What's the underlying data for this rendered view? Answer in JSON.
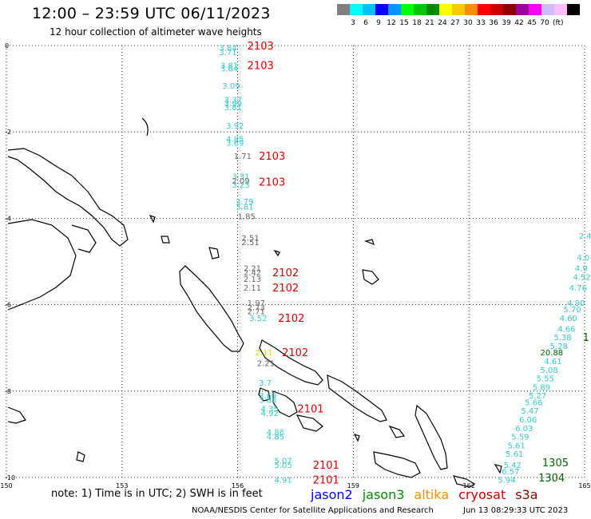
{
  "title": "12:00 – 23:59 UTC 06/11/2023",
  "subtitle": "12 hour collection of altimeter wave heights",
  "colorbar": {
    "colors": [
      "#808080",
      "#00ffff",
      "#00bfff",
      "#0000ff",
      "#0096ff",
      "#00ff00",
      "#00c800",
      "#008c00",
      "#ffff00",
      "#ffc800",
      "#ff8c00",
      "#ff0000",
      "#c80000",
      "#8c0000",
      "#a000a0",
      "#ff00ff",
      "#ccbbff",
      "#ffbbff",
      "#000000"
    ],
    "labels": [
      "3",
      "6",
      "9",
      "12",
      "15",
      "18",
      "21",
      "24",
      "27",
      "30",
      "33",
      "36",
      "39",
      "42",
      "45",
      "70"
    ],
    "unit": "(ft)"
  },
  "footnote": "note:  1) Time is in UTC;  2) SWH is in feet",
  "legend": [
    {
      "name": "jason2",
      "color": "#0000ff"
    },
    {
      "name": "jason3",
      "color": "#008c00"
    },
    {
      "name": "altika",
      "color": "#ff8c00"
    },
    {
      "name": "cryosat",
      "color": "#c80000"
    },
    {
      "name": "s3a",
      "color": "#8c0000"
    }
  ],
  "credit": "NOAA/NESDIS Center for Satellite Applications and Research",
  "timestamp": "Jun 13 08:29:33 UTC 2023",
  "chart_data": {
    "type": "scatter",
    "xlim": [
      150,
      165
    ],
    "ylim": [
      -10,
      0
    ],
    "x_ticks": [
      "150",
      "153",
      "156",
      "159",
      "162",
      "165"
    ],
    "y_ticks": [
      "0",
      "-2",
      "-4",
      "-6",
      "-8",
      "-10"
    ],
    "grid": true,
    "pass_labels": [
      {
        "text": "2103",
        "lon": 156.25,
        "lat": 0.0,
        "color": "#dd0000"
      },
      {
        "text": "2103",
        "lon": 156.25,
        "lat": -0.45,
        "color": "#dd0000"
      },
      {
        "text": "2103",
        "lon": 156.55,
        "lat": -2.55,
        "color": "#dd0000"
      },
      {
        "text": "2103",
        "lon": 156.55,
        "lat": -3.15,
        "color": "#dd0000"
      },
      {
        "text": "2102",
        "lon": 156.9,
        "lat": -5.25,
        "color": "#dd0000"
      },
      {
        "text": "2102",
        "lon": 156.9,
        "lat": -5.6,
        "color": "#dd0000"
      },
      {
        "text": "2102",
        "lon": 157.05,
        "lat": -6.3,
        "color": "#dd0000"
      },
      {
        "text": "2102",
        "lon": 157.15,
        "lat": -7.1,
        "color": "#dd0000"
      },
      {
        "text": "2101",
        "lon": 157.55,
        "lat": -8.4,
        "color": "#dd0000"
      },
      {
        "text": "2101",
        "lon": 157.95,
        "lat": -9.7,
        "color": "#dd0000"
      },
      {
        "text": "2101",
        "lon": 157.95,
        "lat": -10.05,
        "color": "#dd0000"
      },
      {
        "text": "1305",
        "lon": 163.9,
        "lat": -9.65,
        "color": "#006600"
      },
      {
        "text": "1304",
        "lon": 163.8,
        "lat": -10.0,
        "color": "#006600"
      },
      {
        "text": "1",
        "lon": 164.95,
        "lat": -6.75,
        "color": "#006600"
      }
    ],
    "points": [
      {
        "v": "3.84",
        "lon": 155.52,
        "lat": -0.05,
        "c": "#33cccc"
      },
      {
        "v": "3.71",
        "lon": 155.52,
        "lat": -0.15,
        "c": "#33cccc"
      },
      {
        "v": "3.81",
        "lon": 155.55,
        "lat": -0.45,
        "c": "#33cccc"
      },
      {
        "v": "3.64",
        "lon": 155.55,
        "lat": -0.53,
        "c": "#33cccc"
      },
      {
        "v": "3.09",
        "lon": 155.6,
        "lat": -0.92,
        "c": "#33cccc"
      },
      {
        "v": "3.37",
        "lon": 155.65,
        "lat": -1.25,
        "c": "#33cccc"
      },
      {
        "v": "3.99",
        "lon": 155.65,
        "lat": -1.33,
        "c": "#33cccc"
      },
      {
        "v": "3.81",
        "lon": 155.65,
        "lat": -1.42,
        "c": "#33cccc"
      },
      {
        "v": "3.92",
        "lon": 155.7,
        "lat": -1.85,
        "c": "#33cccc"
      },
      {
        "v": "4.85",
        "lon": 155.7,
        "lat": -2.15,
        "c": "#33cccc"
      },
      {
        "v": "3.69",
        "lon": 155.7,
        "lat": -2.25,
        "c": "#33cccc"
      },
      {
        "v": "1.71",
        "lon": 155.9,
        "lat": -2.55,
        "c": "#666666"
      },
      {
        "v": "3.31",
        "lon": 155.85,
        "lat": -3.02,
        "c": "#33cccc"
      },
      {
        "v": "2.09",
        "lon": 155.85,
        "lat": -3.12,
        "c": "#666666"
      },
      {
        "v": "3.23",
        "lon": 155.85,
        "lat": -3.22,
        "c": "#33cccc"
      },
      {
        "v": "3.79",
        "lon": 155.95,
        "lat": -3.6,
        "c": "#33cccc"
      },
      {
        "v": "3.81",
        "lon": 155.95,
        "lat": -3.72,
        "c": "#33cccc"
      },
      {
        "v": "1.85",
        "lon": 156.0,
        "lat": -3.95,
        "c": "#666666"
      },
      {
        "v": "2.51",
        "lon": 156.1,
        "lat": -4.45,
        "c": "#666666"
      },
      {
        "v": "2.51",
        "lon": 156.1,
        "lat": -4.55,
        "c": "#666666"
      },
      {
        "v": "2.21",
        "lon": 156.15,
        "lat": -5.15,
        "c": "#666666"
      },
      {
        "v": "2.42",
        "lon": 156.15,
        "lat": -5.25,
        "c": "#666666"
      },
      {
        "v": "2.13",
        "lon": 156.15,
        "lat": -5.4,
        "c": "#666666"
      },
      {
        "v": "2.11",
        "lon": 156.15,
        "lat": -5.6,
        "c": "#666666"
      },
      {
        "v": "1.97",
        "lon": 156.25,
        "lat": -5.95,
        "c": "#666666"
      },
      {
        "v": "2.73",
        "lon": 156.25,
        "lat": -6.05,
        "c": "#666666"
      },
      {
        "v": "2.71",
        "lon": 156.25,
        "lat": -6.15,
        "c": "#666666"
      },
      {
        "v": "3.52",
        "lon": 156.3,
        "lat": -6.3,
        "c": "#33cccc"
      },
      {
        "v": "2.11",
        "lon": 156.45,
        "lat": -7.1,
        "c": "#dddd00"
      },
      {
        "v": "2.21",
        "lon": 156.5,
        "lat": -7.35,
        "c": "#666666"
      },
      {
        "v": "3.7",
        "lon": 156.55,
        "lat": -7.8,
        "c": "#33cccc"
      },
      {
        "v": "3.69",
        "lon": 156.55,
        "lat": -8.1,
        "c": "#33cccc"
      },
      {
        "v": "3.88",
        "lon": 156.55,
        "lat": -8.2,
        "c": "#33cccc"
      },
      {
        "v": "4.35",
        "lon": 156.6,
        "lat": -8.4,
        "c": "#33cccc"
      },
      {
        "v": "4.92",
        "lon": 156.6,
        "lat": -8.5,
        "c": "#33cccc"
      },
      {
        "v": "4.86",
        "lon": 156.75,
        "lat": -8.95,
        "c": "#33cccc"
      },
      {
        "v": "4.85",
        "lon": 156.75,
        "lat": -9.05,
        "c": "#33cccc"
      },
      {
        "v": "5.07",
        "lon": 156.95,
        "lat": -9.6,
        "c": "#33cccc"
      },
      {
        "v": "5.05",
        "lon": 156.95,
        "lat": -9.7,
        "c": "#33cccc"
      },
      {
        "v": "4.91",
        "lon": 156.95,
        "lat": -10.05,
        "c": "#33cccc"
      },
      {
        "v": "2.4",
        "lon": 164.85,
        "lat": -4.4,
        "c": "#33cccc"
      },
      {
        "v": "4.0",
        "lon": 164.8,
        "lat": -4.9,
        "c": "#33cccc"
      },
      {
        "v": "4.9",
        "lon": 164.75,
        "lat": -5.15,
        "c": "#33cccc"
      },
      {
        "v": "4.52",
        "lon": 164.7,
        "lat": -5.35,
        "c": "#33cccc"
      },
      {
        "v": "4.76",
        "lon": 164.6,
        "lat": -5.6,
        "c": "#33cccc"
      },
      {
        "v": "4.90",
        "lon": 164.55,
        "lat": -5.95,
        "c": "#33cccc"
      },
      {
        "v": "5.70",
        "lon": 164.45,
        "lat": -6.1,
        "c": "#33cccc"
      },
      {
        "v": "4.60",
        "lon": 164.35,
        "lat": -6.3,
        "c": "#33cccc"
      },
      {
        "v": "4.66",
        "lon": 164.3,
        "lat": -6.55,
        "c": "#33cccc"
      },
      {
        "v": "5.38",
        "lon": 164.2,
        "lat": -6.75,
        "c": "#33cccc"
      },
      {
        "v": "5.28",
        "lon": 164.1,
        "lat": -6.95,
        "c": "#33cccc"
      },
      {
        "v": "20.88",
        "lon": 163.85,
        "lat": -7.1,
        "c": "#006600"
      },
      {
        "v": "4.61",
        "lon": 163.95,
        "lat": -7.3,
        "c": "#33cccc"
      },
      {
        "v": "5.08",
        "lon": 163.85,
        "lat": -7.5,
        "c": "#33cccc"
      },
      {
        "v": "5.55",
        "lon": 163.75,
        "lat": -7.7,
        "c": "#33cccc"
      },
      {
        "v": "5.89",
        "lon": 163.65,
        "lat": -7.9,
        "c": "#33cccc"
      },
      {
        "v": "5.27",
        "lon": 163.55,
        "lat": -8.1,
        "c": "#33cccc"
      },
      {
        "v": "5.66",
        "lon": 163.45,
        "lat": -8.25,
        "c": "#33cccc"
      },
      {
        "v": "5.47",
        "lon": 163.35,
        "lat": -8.45,
        "c": "#33cccc"
      },
      {
        "v": "6.06",
        "lon": 163.3,
        "lat": -8.65,
        "c": "#33cccc"
      },
      {
        "v": "6.03",
        "lon": 163.2,
        "lat": -8.85,
        "c": "#33cccc"
      },
      {
        "v": "5.59",
        "lon": 163.1,
        "lat": -9.05,
        "c": "#33cccc"
      },
      {
        "v": "5.61",
        "lon": 163.0,
        "lat": -9.25,
        "c": "#33cccc"
      },
      {
        "v": "5.61",
        "lon": 162.95,
        "lat": -9.45,
        "c": "#33cccc"
      },
      {
        "v": "5.42",
        "lon": 162.9,
        "lat": -9.7,
        "c": "#33cccc"
      },
      {
        "v": "6.57",
        "lon": 162.85,
        "lat": -9.85,
        "c": "#33cccc"
      },
      {
        "v": "5.94",
        "lon": 162.75,
        "lat": -10.05,
        "c": "#33cccc"
      }
    ]
  }
}
